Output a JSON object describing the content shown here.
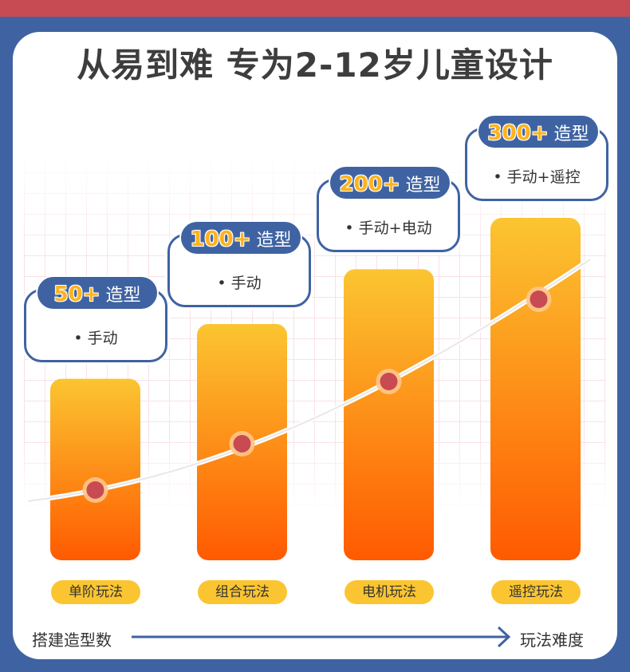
{
  "title": "从易到难 专为2-12岁儿童设计",
  "chart_data": {
    "type": "bar",
    "title": "从易到难 专为2-12岁儿童设计",
    "categories": [
      "单阶玩法",
      "组合玩法",
      "电机玩法",
      "遥控玩法"
    ],
    "values": [
      50,
      100,
      200,
      300
    ],
    "bar_levels": [
      0.53,
      0.69,
      0.85,
      1.0
    ],
    "value_labels": [
      "50+",
      "100+",
      "200+",
      "300+"
    ],
    "unit_label": "造型",
    "features": [
      "• 手动",
      "• 手动",
      "• 手动+电动",
      "• 手动+遥控"
    ],
    "xlabel": "玩法难度",
    "ylabel": "搭建造型数",
    "colors": {
      "bar_top": "#fbc531",
      "bar_bottom": "#ff5a00",
      "accent": "#3f63a2",
      "dot": "#c84a52"
    }
  }
}
